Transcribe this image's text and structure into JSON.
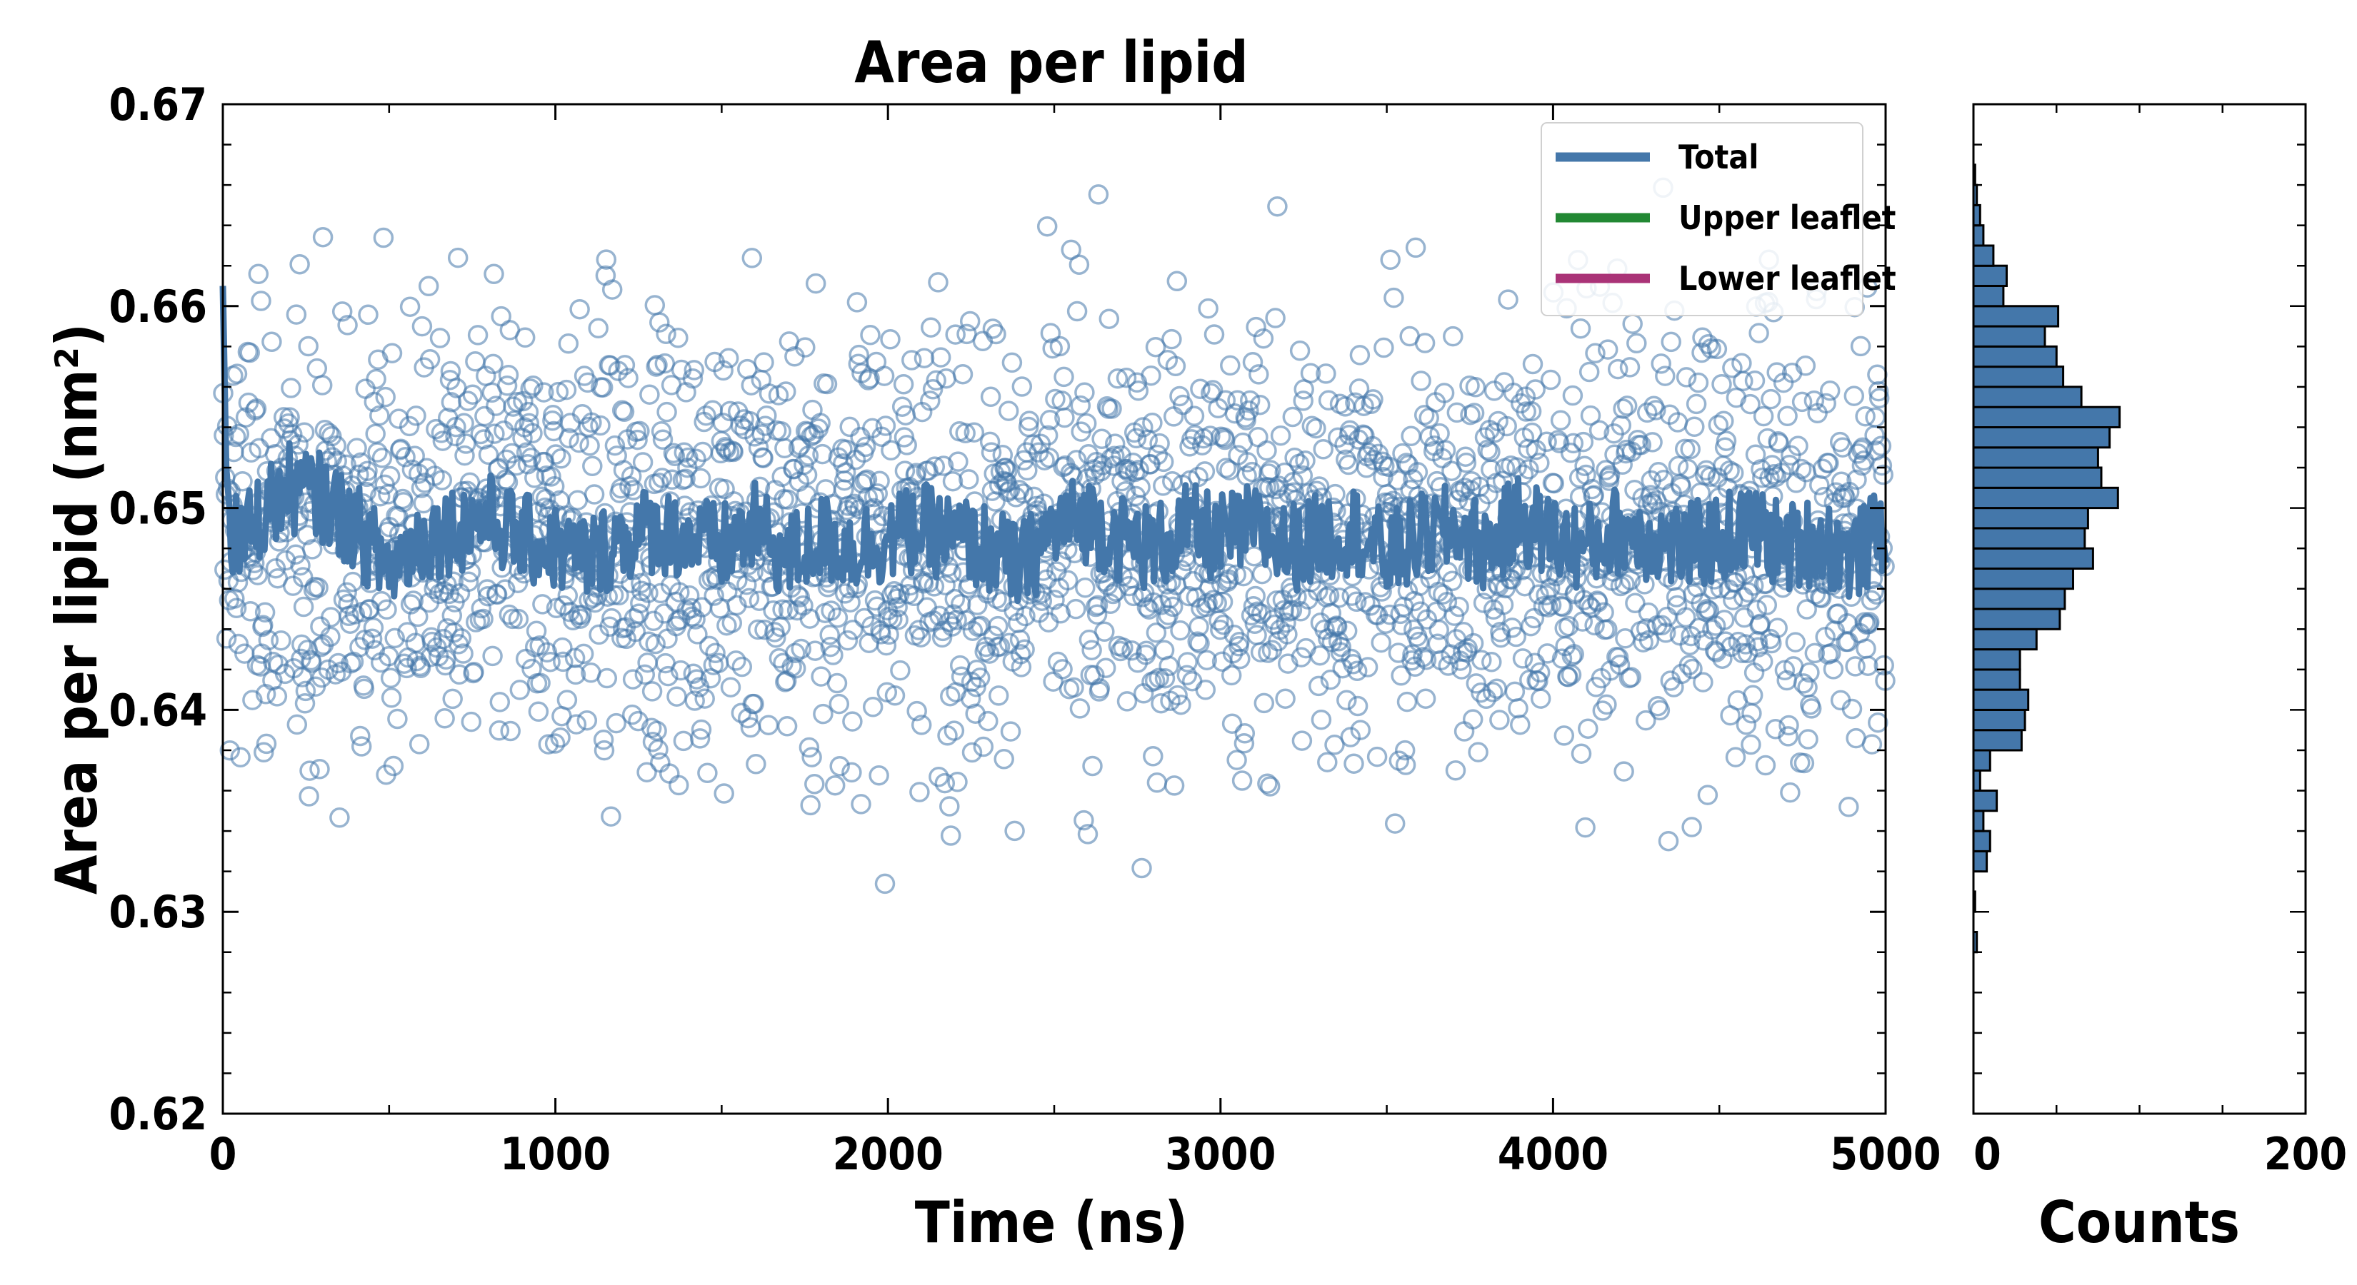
{
  "chart_data": [
    {
      "type": "scatter",
      "title": "Area per lipid",
      "xlabel": "Time (ns)",
      "ylabel": "Area per lipid (nm²)",
      "xlim": [
        0,
        5000
      ],
      "ylim": [
        0.62,
        0.67
      ],
      "xticks": [
        "0",
        "1000",
        "2000",
        "3000",
        "4000",
        "5000"
      ],
      "yticks": [
        "0.62",
        "0.63",
        "0.64",
        "0.65",
        "0.66",
        "0.67"
      ],
      "grid": false,
      "legend": {
        "placement": "top-right",
        "entries": [
          {
            "label": "Total",
            "color": "#4477aa"
          },
          {
            "label": "Upper leaflet",
            "color": "#228833"
          },
          {
            "label": "Lower leaflet",
            "color": "#aa3377"
          }
        ]
      },
      "series": [
        {
          "name": "Total",
          "style": "open-circle-scatter",
          "color": "#4477aa",
          "point_count": 2500,
          "mean": 0.6485,
          "std": 0.006,
          "min": 0.6283,
          "max": 0.667
        },
        {
          "name": "Total",
          "style": "running-average-line",
          "color": "#4477aa",
          "x": [
            0,
            10,
            25,
            50,
            100,
            200,
            300,
            400,
            500,
            600,
            700,
            800,
            900,
            1000,
            1100,
            1200,
            1300,
            1400,
            1500,
            1600,
            1700,
            1800,
            1900,
            2000,
            2100,
            2200,
            2300,
            2400,
            2500,
            2600,
            2700,
            2800,
            2900,
            3000,
            3100,
            3200,
            3300,
            3400,
            3500,
            3600,
            3700,
            3800,
            3900,
            4000,
            4100,
            4200,
            4300,
            4400,
            4500,
            4600,
            4700,
            4800,
            4900,
            5000
          ],
          "y": [
            0.661,
            0.652,
            0.649,
            0.648,
            0.6495,
            0.651,
            0.6505,
            0.649,
            0.647,
            0.6485,
            0.649,
            0.6495,
            0.6485,
            0.648,
            0.6475,
            0.6485,
            0.649,
            0.6485,
            0.648,
            0.649,
            0.6475,
            0.6485,
            0.648,
            0.6485,
            0.649,
            0.6485,
            0.648,
            0.647,
            0.649,
            0.6495,
            0.6485,
            0.648,
            0.649,
            0.6485,
            0.649,
            0.648,
            0.6485,
            0.649,
            0.6475,
            0.6485,
            0.649,
            0.648,
            0.6495,
            0.6485,
            0.648,
            0.649,
            0.6485,
            0.648,
            0.6485,
            0.649,
            0.648,
            0.6485,
            0.6475,
            0.649
          ]
        }
      ]
    },
    {
      "type": "bar",
      "orientation": "horizontal",
      "xlabel": "Counts",
      "xlim": [
        0,
        200
      ],
      "xticks": [
        "0",
        "200"
      ],
      "ylim": [
        0.62,
        0.67
      ],
      "color": "#4477aa",
      "edgecolor": "#000000",
      "bins": [
        0.6285,
        0.6305,
        0.6325,
        0.6335,
        0.6345,
        0.6355,
        0.6365,
        0.6375,
        0.6385,
        0.6395,
        0.6405,
        0.6415,
        0.6425,
        0.6435,
        0.6445,
        0.6455,
        0.6465,
        0.6475,
        0.6485,
        0.6495,
        0.6505,
        0.6515,
        0.6525,
        0.6535,
        0.6545,
        0.6555,
        0.6565,
        0.6575,
        0.6585,
        0.6595,
        0.6605,
        0.6615,
        0.6625,
        0.6635,
        0.6645,
        0.6655,
        0.6665
      ],
      "values": [
        2,
        1,
        8,
        10,
        6,
        14,
        4,
        10,
        29,
        31,
        33,
        28,
        28,
        38,
        52,
        55,
        60,
        72,
        67,
        69,
        87,
        77,
        75,
        82,
        88,
        65,
        54,
        50,
        43,
        51,
        18,
        20,
        12,
        6,
        4,
        2,
        1
      ]
    }
  ]
}
